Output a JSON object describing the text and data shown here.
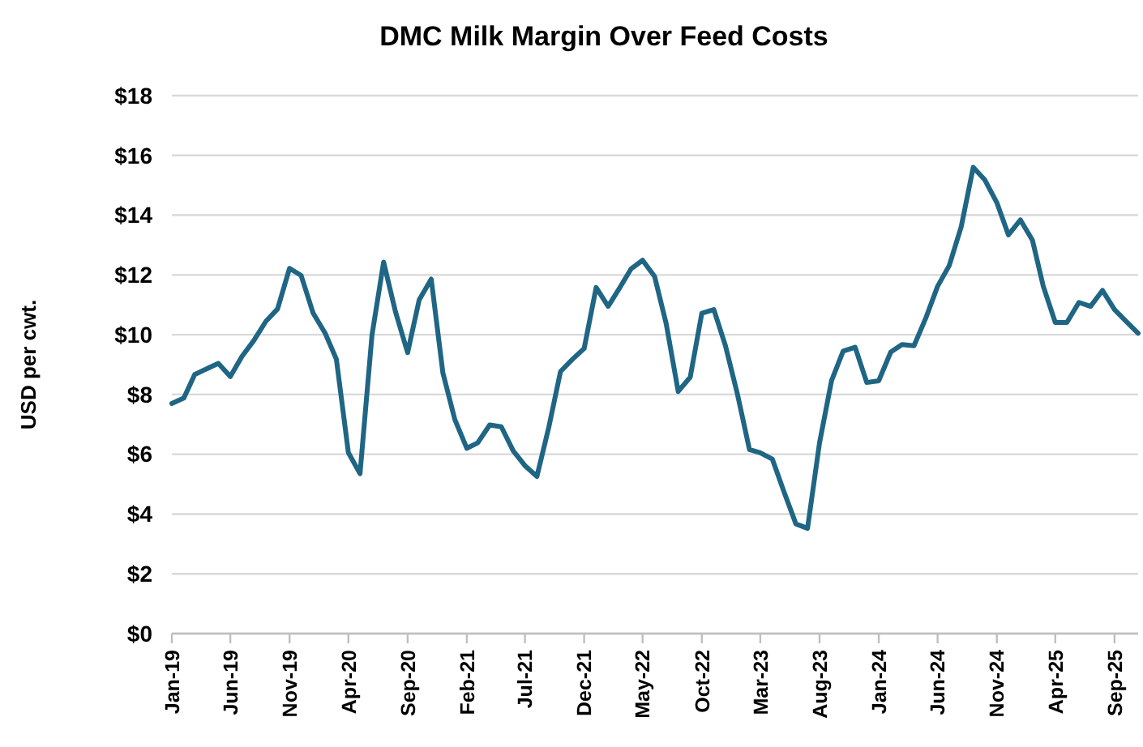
{
  "chart_data": {
    "type": "line",
    "title": "DMC Milk Margin Over Feed Costs",
    "ylabel": "USD per cwt.",
    "x": [
      "2019-01",
      "2019-02",
      "2019-03",
      "2019-04",
      "2019-05",
      "2019-06",
      "2019-07",
      "2019-08",
      "2019-09",
      "2019-10",
      "2019-11",
      "2019-12",
      "2020-01",
      "2020-02",
      "2020-03",
      "2020-04",
      "2020-05",
      "2020-06",
      "2020-07",
      "2020-08",
      "2020-09",
      "2020-10",
      "2020-11",
      "2020-12",
      "2021-01",
      "2021-02",
      "2021-03",
      "2021-04",
      "2021-05",
      "2021-06",
      "2021-07",
      "2021-08",
      "2021-09",
      "2021-10",
      "2021-11",
      "2021-12",
      "2022-01",
      "2022-02",
      "2022-03",
      "2022-04",
      "2022-05",
      "2022-06",
      "2022-07",
      "2022-08",
      "2022-09",
      "2022-10",
      "2022-11",
      "2022-12",
      "2023-01",
      "2023-02",
      "2023-03",
      "2023-04",
      "2023-05",
      "2023-06",
      "2023-07",
      "2023-08",
      "2023-09",
      "2023-10",
      "2023-11",
      "2023-12",
      "2024-01",
      "2024-02",
      "2024-03",
      "2024-04",
      "2024-05",
      "2024-06",
      "2024-07",
      "2024-08",
      "2024-09",
      "2024-10",
      "2024-11",
      "2024-12",
      "2025-01",
      "2025-02",
      "2025-03",
      "2025-04",
      "2025-05",
      "2025-06",
      "2025-07",
      "2025-08",
      "2025-09",
      "2025-10",
      "2025-11"
    ],
    "series": [
      {
        "color": "#1f6584",
        "values": [
          7.7,
          7.88,
          8.67,
          8.86,
          9.04,
          8.6,
          9.27,
          9.81,
          10.45,
          10.86,
          12.22,
          11.98,
          10.72,
          10.05,
          9.18,
          6.05,
          5.35,
          9.99,
          12.43,
          10.75,
          9.4,
          11.17,
          11.86,
          8.73,
          7.16,
          6.2,
          6.38,
          6.98,
          6.92,
          6.11,
          5.62,
          5.26,
          6.92,
          8.77,
          9.18,
          9.54,
          11.58,
          10.95,
          11.53,
          12.2,
          12.49,
          11.95,
          10.36,
          8.1,
          8.58,
          10.72,
          10.84,
          9.63,
          8.01,
          6.16,
          6.05,
          5.84,
          4.75,
          3.67,
          3.52,
          6.38,
          8.46,
          9.45,
          9.58,
          8.4,
          8.46,
          9.42,
          9.67,
          9.63,
          10.54,
          11.62,
          12.31,
          13.61,
          15.6,
          15.18,
          14.42,
          13.34,
          13.84,
          13.16,
          11.62,
          10.41,
          10.41,
          11.08,
          10.95,
          11.48,
          10.84,
          10.45,
          10.05
        ]
      }
    ],
    "xlim": [
      "2019-01",
      "2025-11"
    ],
    "xticks": [
      {
        "value": "2019-01",
        "label": "Jan-19"
      },
      {
        "value": "2019-06",
        "label": "Jun-19"
      },
      {
        "value": "2019-11",
        "label": "Nov-19"
      },
      {
        "value": "2020-04",
        "label": "Apr-20"
      },
      {
        "value": "2020-09",
        "label": "Sep-20"
      },
      {
        "value": "2021-02",
        "label": "Feb-21"
      },
      {
        "value": "2021-07",
        "label": "Jul-21"
      },
      {
        "value": "2021-12",
        "label": "Dec-21"
      },
      {
        "value": "2022-05",
        "label": "May-22"
      },
      {
        "value": "2022-10",
        "label": "Oct-22"
      },
      {
        "value": "2023-03",
        "label": "Mar-23"
      },
      {
        "value": "2023-08",
        "label": "Aug-23"
      },
      {
        "value": "2024-01",
        "label": "Jan-24"
      },
      {
        "value": "2024-06",
        "label": "Jun-24"
      },
      {
        "value": "2024-11",
        "label": "Nov-24"
      },
      {
        "value": "2025-04",
        "label": "Apr-25"
      },
      {
        "value": "2025-09",
        "label": "Sep-25"
      }
    ],
    "ylim": [
      0,
      18
    ],
    "yticks": [
      {
        "value": 0,
        "label": "$0"
      },
      {
        "value": 2,
        "label": "$2"
      },
      {
        "value": 4,
        "label": "$4"
      },
      {
        "value": 6,
        "label": "$6"
      },
      {
        "value": 8,
        "label": "$8"
      },
      {
        "value": 10,
        "label": "$10"
      },
      {
        "value": 12,
        "label": "$12"
      },
      {
        "value": 14,
        "label": "$14"
      },
      {
        "value": 16,
        "label": "$16"
      },
      {
        "value": 18,
        "label": "$18"
      }
    ],
    "grid": "y"
  }
}
